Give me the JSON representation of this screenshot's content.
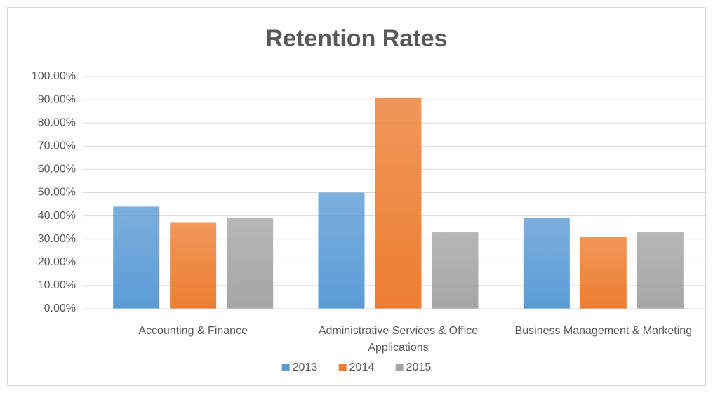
{
  "chart_data": {
    "type": "bar",
    "title": "Retention Rates",
    "categories": [
      "Accounting & Finance",
      "Administrative Services & Office Applications",
      "Business Management & Marketing"
    ],
    "series": [
      {
        "name": "2013",
        "color": "#5b9bd5",
        "values": [
          44,
          50,
          39
        ]
      },
      {
        "name": "2014",
        "color": "#ed7d31",
        "values": [
          37,
          91,
          31
        ]
      },
      {
        "name": "2015",
        "color": "#a5a5a5",
        "values": [
          39,
          33,
          33
        ]
      }
    ],
    "ylim": [
      0,
      100
    ],
    "yticks": [
      {
        "value": 0,
        "label": "0.00%"
      },
      {
        "value": 10,
        "label": "10.00%"
      },
      {
        "value": 20,
        "label": "20.00%"
      },
      {
        "value": 30,
        "label": "30.00%"
      },
      {
        "value": 40,
        "label": "40.00%"
      },
      {
        "value": 50,
        "label": "50.00%"
      },
      {
        "value": 60,
        "label": "60.00%"
      },
      {
        "value": 70,
        "label": "70.00%"
      },
      {
        "value": 80,
        "label": "80.00%"
      },
      {
        "value": 90,
        "label": "90.00%"
      },
      {
        "value": 100,
        "label": "100.00%"
      }
    ],
    "grid": true,
    "legend": "bottom"
  }
}
